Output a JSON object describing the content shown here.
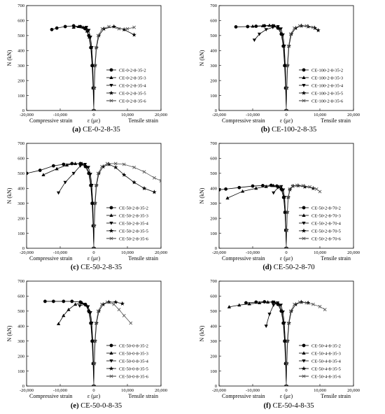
{
  "chart_data": [
    {
      "type": "line",
      "panel": "a",
      "caption_letter": "(a)",
      "caption_name": "CE-0-2-8-35",
      "ylabel": "N (kN)",
      "xlabel": "ε (με)",
      "xlabel_left": "Compressive strain",
      "xlabel_right": "Tensile strain",
      "xlim": [
        -20000,
        20000
      ],
      "ylim": [
        0,
        700
      ],
      "xticks": [
        -20000,
        -10000,
        0,
        10000,
        20000
      ],
      "xtick_labels": [
        "-20,000",
        "-10,000",
        "0",
        "10,000",
        "20,000"
      ],
      "yticks": [
        0,
        100,
        200,
        300,
        400,
        500,
        600,
        700
      ],
      "legend_position": "lower-right",
      "series": [
        {
          "name": "CE-0-2-8-35-2",
          "marker": "circle",
          "x": [
            0,
            -200,
            -500,
            -900,
            -1500,
            -2500,
            -4000,
            -6000,
            -8500,
            -11000,
            -12500
          ],
          "y": [
            0,
            150,
            300,
            420,
            500,
            545,
            560,
            565,
            560,
            550,
            540
          ]
        },
        {
          "name": "CE-0-2-8-35-3",
          "marker": "triangle-up",
          "x": [
            0,
            -150,
            -400,
            -800,
            -1300,
            -2000,
            -3200,
            -4500,
            -6000
          ],
          "y": [
            0,
            150,
            300,
            420,
            490,
            530,
            555,
            560,
            555
          ]
        },
        {
          "name": "CE-0-2-8-35-4",
          "marker": "triangle-down",
          "x": [
            0,
            -100,
            -300,
            -600,
            -1000,
            -1500,
            -2200,
            -3000
          ],
          "y": [
            0,
            150,
            300,
            420,
            490,
            535,
            555,
            550
          ]
        },
        {
          "name": "CE-0-2-8-35-5",
          "marker": "star",
          "x": [
            0,
            150,
            400,
            800,
            1500,
            3000,
            6000,
            9000,
            12000
          ],
          "y": [
            0,
            150,
            300,
            420,
            500,
            545,
            560,
            540,
            505
          ]
        },
        {
          "name": "CE-0-2-8-35-6",
          "marker": "x",
          "x": [
            0,
            100,
            300,
            700,
            1300,
            2500,
            4500,
            7500,
            10000,
            12000
          ],
          "y": [
            0,
            150,
            300,
            420,
            500,
            545,
            560,
            545,
            545,
            555
          ]
        }
      ]
    },
    {
      "type": "line",
      "panel": "b",
      "caption_letter": "(b)",
      "caption_name": "CE-100-2-8-35",
      "ylabel": "N (kN)",
      "xlabel": "ε (με)",
      "xlabel_left": "Compressive strain",
      "xlabel_right": "Tensile strain",
      "xlim": [
        -20000,
        20000
      ],
      "ylim": [
        0,
        700
      ],
      "xticks": [
        -20000,
        -10000,
        0,
        10000,
        20000
      ],
      "xtick_labels": [
        "-20,000",
        "-10,000",
        "0",
        "10,000",
        "20,000"
      ],
      "yticks": [
        0,
        100,
        200,
        300,
        400,
        500,
        600,
        700
      ],
      "legend_position": "lower-right",
      "series": [
        {
          "name": "CE-100-2-8-35-2",
          "marker": "circle",
          "x": [
            0,
            -200,
            -500,
            -900,
            -1500,
            -2500,
            -4000,
            -6500,
            -9000,
            -11500,
            -15000
          ],
          "y": [
            0,
            150,
            300,
            430,
            510,
            550,
            565,
            565,
            562,
            560,
            558
          ]
        },
        {
          "name": "CE-100-2-8-35-3",
          "marker": "triangle-up",
          "x": [
            0,
            -150,
            -400,
            -800,
            -1300,
            -2200,
            -3500,
            -5000,
            -7000,
            -10000
          ],
          "y": [
            0,
            150,
            300,
            430,
            510,
            550,
            565,
            568,
            565,
            562
          ]
        },
        {
          "name": "CE-100-2-8-35-4",
          "marker": "triangle-down",
          "x": [
            0,
            -100,
            -300,
            -600,
            -1000,
            -1600,
            -2500,
            -4000,
            -6000,
            -8000,
            -9500
          ],
          "y": [
            0,
            150,
            300,
            430,
            505,
            545,
            560,
            555,
            540,
            510,
            470
          ]
        },
        {
          "name": "CE-100-2-8-35-5",
          "marker": "star",
          "x": [
            0,
            150,
            400,
            800,
            1500,
            2800,
            4500,
            6500,
            8500,
            9500
          ],
          "y": [
            0,
            150,
            300,
            430,
            510,
            550,
            565,
            560,
            550,
            535
          ]
        },
        {
          "name": "CE-100-2-8-35-6",
          "marker": "x",
          "x": [
            0,
            100,
            300,
            700,
            1300,
            2400,
            4000,
            6000,
            8000
          ],
          "y": [
            0,
            150,
            300,
            430,
            510,
            550,
            565,
            565,
            555
          ]
        }
      ]
    },
    {
      "type": "line",
      "panel": "c",
      "caption_letter": "(c)",
      "caption_name": "CE-50-2-8-35",
      "ylabel": "N (kN)",
      "xlabel": "ε (με)",
      "xlabel_left": "Compressive strain",
      "xlabel_right": "Tensile strain",
      "xlim": [
        -20000,
        20000
      ],
      "ylim": [
        0,
        700
      ],
      "xticks": [
        -20000,
        -10000,
        0,
        10000,
        20000
      ],
      "xtick_labels": [
        "-20,000",
        "-10,000",
        "0",
        "10,000",
        "20,000"
      ],
      "yticks": [
        0,
        100,
        200,
        300,
        400,
        500,
        600,
        700
      ],
      "legend_position": "lower-right",
      "series": [
        {
          "name": "CE-50-2-8-35-2",
          "marker": "circle",
          "x": [
            0,
            -200,
            -500,
            -900,
            -1500,
            -2500,
            -4000,
            -6500,
            -9000,
            -12000,
            -16000,
            -20000
          ],
          "y": [
            0,
            150,
            300,
            420,
            500,
            545,
            565,
            565,
            560,
            550,
            520,
            500
          ]
        },
        {
          "name": "CE-50-2-8-35-3",
          "marker": "triangle-up",
          "x": [
            0,
            -150,
            -400,
            -800,
            -1300,
            -2200,
            -3500,
            -5500,
            -8000,
            -11000,
            -15000
          ],
          "y": [
            0,
            150,
            300,
            420,
            500,
            545,
            565,
            565,
            555,
            530,
            490
          ]
        },
        {
          "name": "CE-50-2-8-35-4",
          "marker": "triangle-down",
          "x": [
            0,
            -100,
            -300,
            -600,
            -1000,
            -1600,
            -2600,
            -4000,
            -6000,
            -8500,
            -10500
          ],
          "y": [
            0,
            150,
            300,
            420,
            495,
            540,
            560,
            550,
            500,
            440,
            370
          ]
        },
        {
          "name": "CE-50-2-8-35-5",
          "marker": "star",
          "x": [
            0,
            150,
            400,
            800,
            1500,
            2800,
            4500,
            6500,
            9000,
            12000,
            15000,
            18000
          ],
          "y": [
            0,
            150,
            300,
            420,
            500,
            545,
            560,
            540,
            490,
            440,
            400,
            375
          ]
        },
        {
          "name": "CE-50-2-8-35-6",
          "marker": "x",
          "x": [
            0,
            100,
            300,
            700,
            1300,
            2400,
            4000,
            6500,
            9000,
            12000,
            15000,
            18000,
            20000
          ],
          "y": [
            0,
            150,
            300,
            420,
            500,
            545,
            565,
            565,
            560,
            540,
            510,
            470,
            450
          ]
        }
      ]
    },
    {
      "type": "line",
      "panel": "d",
      "caption_letter": "(d)",
      "caption_name": "CE-50-2-8-70",
      "ylabel": "N (kN)",
      "xlabel": "ε (με)",
      "xlabel_left": "Compressive strain",
      "xlabel_right": "Tensile strain",
      "xlim": [
        -20000,
        20000
      ],
      "ylim": [
        0,
        700
      ],
      "xticks": [
        -20000,
        -10000,
        0,
        10000,
        20000
      ],
      "xtick_labels": [
        "-20,000",
        "-10,000",
        "0",
        "10,000",
        "20,000"
      ],
      "yticks": [
        0,
        100,
        200,
        300,
        400,
        500,
        600,
        700
      ],
      "legend_position": "lower-right",
      "series": [
        {
          "name": "CE-50-2-8-70-2",
          "marker": "circle",
          "x": [
            0,
            -150,
            -400,
            -800,
            -1500,
            -2800,
            -4500,
            -7000,
            -10000,
            -14000,
            -18000,
            -20000
          ],
          "y": [
            0,
            120,
            240,
            340,
            395,
            415,
            420,
            418,
            415,
            405,
            395,
            390
          ]
        },
        {
          "name": "CE-50-2-8-70-3",
          "marker": "triangle-up",
          "x": [
            0,
            -120,
            -350,
            -700,
            -1200,
            -2200,
            -3800,
            -6000,
            -9000,
            -13000,
            -17500
          ],
          "y": [
            0,
            120,
            240,
            340,
            390,
            410,
            418,
            412,
            400,
            380,
            335
          ]
        },
        {
          "name": "CE-50-2-8-70-4",
          "marker": "triangle-down",
          "x": [
            0,
            -100,
            -250,
            -500,
            -900,
            -1500,
            -2500,
            -3800
          ],
          "y": [
            0,
            120,
            240,
            340,
            390,
            412,
            405,
            370
          ]
        },
        {
          "name": "CE-50-2-8-70-5",
          "marker": "star",
          "x": [
            0,
            120,
            300,
            600,
            1100,
            2000,
            3500,
            5500,
            8000
          ],
          "y": [
            0,
            120,
            240,
            340,
            392,
            415,
            418,
            410,
            400
          ]
        },
        {
          "name": "CE-50-2-8-70-6",
          "marker": "x",
          "x": [
            0,
            100,
            250,
            550,
            1000,
            1900,
            3200,
            5000,
            7000,
            9000,
            10000
          ],
          "y": [
            0,
            120,
            240,
            340,
            395,
            415,
            420,
            418,
            410,
            395,
            378
          ]
        }
      ]
    },
    {
      "type": "line",
      "panel": "e",
      "caption_letter": "(e)",
      "caption_name": "CE-50-0-8-35",
      "ylabel": "N (kN)",
      "xlabel": "ε (με)",
      "xlabel_left": "Compressive strain",
      "xlabel_right": "Tensile strain",
      "xlim": [
        -20000,
        20000
      ],
      "ylim": [
        0,
        700
      ],
      "xticks": [
        -20000,
        -10000,
        0,
        10000,
        20000
      ],
      "xtick_labels": [
        "-20,000",
        "-10,000",
        "0",
        "10,000",
        "20,000"
      ],
      "yticks": [
        0,
        100,
        200,
        300,
        400,
        500,
        600,
        700
      ],
      "legend_position": "lower-right",
      "series": [
        {
          "name": "CE-50-0-8-35-2",
          "marker": "circle",
          "x": [
            0,
            -200,
            -500,
            -900,
            -1500,
            -2500,
            -4000,
            -6500,
            -9000,
            -12000,
            -14500
          ],
          "y": [
            0,
            150,
            300,
            420,
            500,
            545,
            560,
            565,
            565,
            565,
            565
          ]
        },
        {
          "name": "CE-50-0-8-35-3",
          "marker": "triangle-up",
          "x": [
            0,
            -150,
            -400,
            -800,
            -1300,
            -2200,
            -3500,
            -5500,
            -7500,
            -9000,
            -10500
          ],
          "y": [
            0,
            150,
            300,
            420,
            495,
            540,
            555,
            545,
            510,
            470,
            415
          ]
        },
        {
          "name": "CE-50-0-8-35-4",
          "marker": "triangle-down",
          "x": [
            0,
            -100,
            -300,
            -600,
            -1000,
            -1700,
            -2800,
            -4200
          ],
          "y": [
            0,
            150,
            300,
            420,
            490,
            530,
            545,
            535
          ]
        },
        {
          "name": "CE-50-0-8-35-5",
          "marker": "star",
          "x": [
            0,
            150,
            400,
            800,
            1500,
            2800,
            4500,
            6500,
            8500
          ],
          "y": [
            0,
            150,
            300,
            420,
            500,
            545,
            560,
            560,
            550
          ]
        },
        {
          "name": "CE-50-0-8-35-6",
          "marker": "x",
          "x": [
            0,
            100,
            300,
            700,
            1300,
            2400,
            4000,
            6000,
            7500,
            9000,
            11000
          ],
          "y": [
            0,
            150,
            300,
            420,
            500,
            545,
            560,
            545,
            510,
            470,
            420
          ]
        }
      ]
    },
    {
      "type": "line",
      "panel": "f",
      "caption_letter": "(f)",
      "caption_name": "CE-50-4-8-35",
      "ylabel": "N (kN)",
      "xlabel": "ε (με)",
      "xlabel_left": "Compressive strain",
      "xlabel_right": "Tensile strain",
      "xlim": [
        -20000,
        20000
      ],
      "ylim": [
        0,
        700
      ],
      "xticks": [
        -20000,
        -10000,
        0,
        10000,
        20000
      ],
      "xtick_labels": [
        "-20,000",
        "-10,000",
        "0",
        "10,000",
        "20,000"
      ],
      "yticks": [
        0,
        100,
        200,
        300,
        400,
        500,
        600,
        700
      ],
      "legend_position": "lower-right",
      "series": [
        {
          "name": "CE-50-4-8-35-2",
          "marker": "circle",
          "x": [
            0,
            -200,
            -500,
            -900,
            -1500,
            -2500,
            -4000,
            -6500,
            -9000,
            -12000
          ],
          "y": [
            0,
            150,
            300,
            420,
            500,
            545,
            560,
            562,
            560,
            555
          ]
        },
        {
          "name": "CE-50-4-8-35-3",
          "marker": "triangle-up",
          "x": [
            0,
            -150,
            -400,
            -800,
            -1300,
            -2200,
            -3500,
            -5500,
            -8000,
            -11000,
            -14000,
            -17000
          ],
          "y": [
            0,
            150,
            300,
            420,
            500,
            545,
            560,
            560,
            555,
            548,
            540,
            528
          ]
        },
        {
          "name": "CE-50-4-8-35-4",
          "marker": "triangle-down",
          "x": [
            0,
            -100,
            -300,
            -600,
            -1000,
            -1600,
            -2600,
            -3800,
            -5000,
            -6000
          ],
          "y": [
            0,
            150,
            300,
            420,
            495,
            540,
            555,
            540,
            480,
            400
          ]
        },
        {
          "name": "CE-50-4-8-35-5",
          "marker": "star",
          "x": [
            0,
            150,
            400,
            800,
            1500,
            2800,
            4500,
            6500
          ],
          "y": [
            0,
            150,
            300,
            420,
            500,
            545,
            560,
            555
          ]
        },
        {
          "name": "CE-50-4-8-35-6",
          "marker": "x",
          "x": [
            0,
            100,
            300,
            700,
            1300,
            2400,
            4000,
            6000,
            8000,
            10000,
            11500
          ],
          "y": [
            0,
            150,
            300,
            420,
            500,
            545,
            560,
            555,
            545,
            530,
            510
          ]
        }
      ]
    }
  ]
}
